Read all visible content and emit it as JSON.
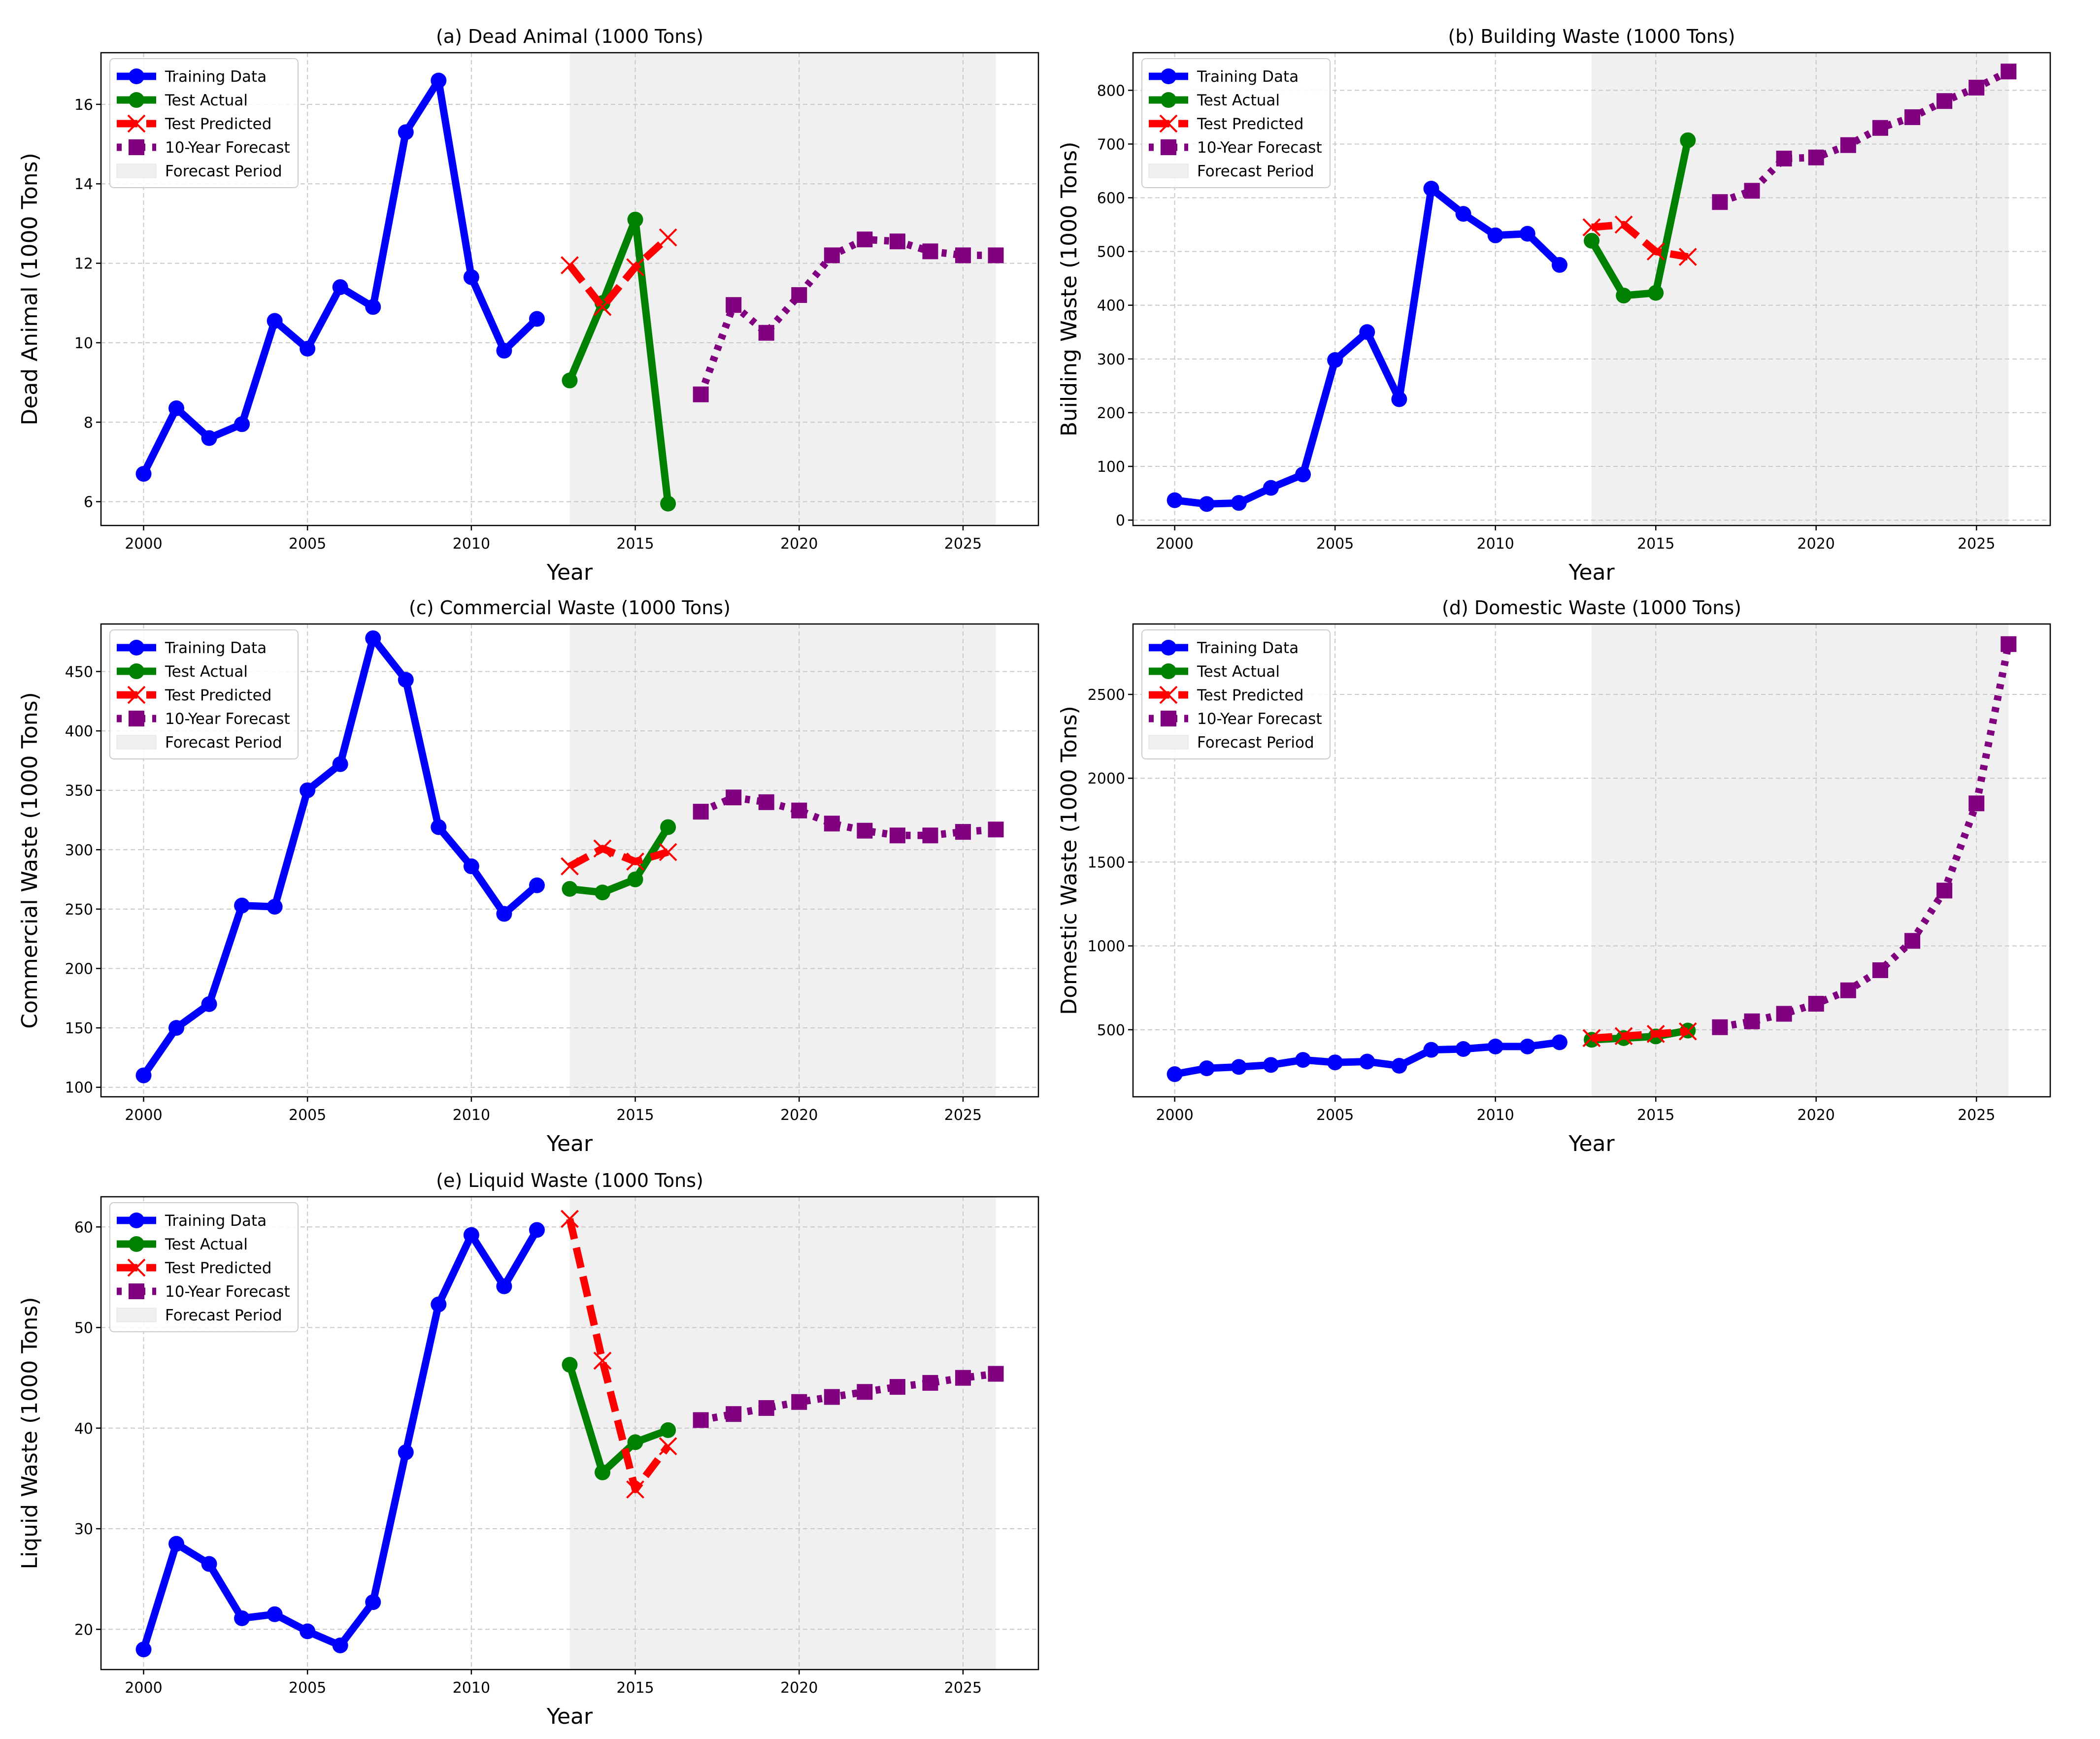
{
  "legend_labels": [
    "Training Data",
    "Test Actual",
    "Test Predicted",
    "10-Year Forecast",
    "Forecast Period"
  ],
  "colors": {
    "training": "#0000ff",
    "test_actual": "#008000",
    "test_predicted": "#ff0000",
    "forecast": "#800080",
    "forecast_period": "#f0f0f0",
    "grid": "#c8c8c8"
  },
  "chart_data": [
    {
      "id": "a",
      "type": "line",
      "title": "(a) Dead Animal (1000 Tons)",
      "xlabel": "Year",
      "ylabel": "Dead Animal (1000 Tons)",
      "xlim": [
        1998.7,
        2027.3
      ],
      "ylim": [
        5.4,
        17.3
      ],
      "xticks": [
        2000,
        2005,
        2010,
        2015,
        2020,
        2025
      ],
      "yticks": [
        6,
        8,
        10,
        12,
        14,
        16
      ],
      "legend_position": "upper-left",
      "forecast_period": [
        2013,
        2026
      ],
      "series": [
        {
          "name": "Training Data",
          "style": "training",
          "x": [
            2000,
            2001,
            2002,
            2003,
            2004,
            2005,
            2006,
            2007,
            2008,
            2009,
            2010,
            2011,
            2012
          ],
          "y": [
            6.7,
            8.35,
            7.6,
            7.95,
            10.55,
            9.85,
            11.4,
            10.9,
            15.3,
            16.6,
            11.65,
            9.8,
            10.6
          ]
        },
        {
          "name": "Test Actual",
          "style": "test_actual",
          "x": [
            2013,
            2014,
            2015,
            2016
          ],
          "y": [
            9.05,
            11.0,
            13.1,
            5.95
          ]
        },
        {
          "name": "Test Predicted",
          "style": "test_predicted",
          "x": [
            2013,
            2014,
            2015,
            2016
          ],
          "y": [
            11.95,
            10.9,
            11.9,
            12.65
          ]
        },
        {
          "name": "10-Year Forecast",
          "style": "forecast",
          "x": [
            2017,
            2018,
            2019,
            2020,
            2021,
            2022,
            2023,
            2024,
            2025,
            2026
          ],
          "y": [
            8.7,
            10.95,
            10.25,
            11.2,
            12.2,
            12.6,
            12.55,
            12.3,
            12.2,
            12.2
          ]
        }
      ]
    },
    {
      "id": "b",
      "type": "line",
      "title": "(b) Building Waste (1000 Tons)",
      "xlabel": "Year",
      "ylabel": "Building Waste (1000 Tons)",
      "xlim": [
        1998.7,
        2027.3
      ],
      "ylim": [
        -10,
        870
      ],
      "xticks": [
        2000,
        2005,
        2010,
        2015,
        2020,
        2025
      ],
      "yticks": [
        0,
        100,
        200,
        300,
        400,
        500,
        600,
        700,
        800
      ],
      "legend_position": "upper-left",
      "forecast_period": [
        2013,
        2026
      ],
      "series": [
        {
          "name": "Training Data",
          "style": "training",
          "x": [
            2000,
            2001,
            2002,
            2003,
            2004,
            2005,
            2006,
            2007,
            2008,
            2009,
            2010,
            2011,
            2012
          ],
          "y": [
            37,
            30,
            32,
            60,
            85,
            298,
            350,
            225,
            617,
            570,
            530,
            533,
            475
          ]
        },
        {
          "name": "Test Actual",
          "style": "test_actual",
          "x": [
            2013,
            2014,
            2015,
            2016
          ],
          "y": [
            520,
            418,
            423,
            707
          ]
        },
        {
          "name": "Test Predicted",
          "style": "test_predicted",
          "x": [
            2013,
            2014,
            2015,
            2016
          ],
          "y": [
            545,
            550,
            500,
            490
          ]
        },
        {
          "name": "10-Year Forecast",
          "style": "forecast",
          "x": [
            2017,
            2018,
            2019,
            2020,
            2021,
            2022,
            2023,
            2024,
            2025,
            2026
          ],
          "y": [
            592,
            613,
            673,
            675,
            698,
            730,
            750,
            780,
            805,
            835
          ]
        }
      ]
    },
    {
      "id": "c",
      "type": "line",
      "title": "(c) Commercial Waste (1000 Tons)",
      "xlabel": "Year",
      "ylabel": "Commercial Waste (1000 Tons)",
      "xlim": [
        1998.7,
        2027.3
      ],
      "ylim": [
        92,
        490
      ],
      "xticks": [
        2000,
        2005,
        2010,
        2015,
        2020,
        2025
      ],
      "yticks": [
        100,
        150,
        200,
        250,
        300,
        350,
        400,
        450
      ],
      "legend_position": "upper-left",
      "forecast_period": [
        2013,
        2026
      ],
      "series": [
        {
          "name": "Training Data",
          "style": "training",
          "x": [
            2000,
            2001,
            2002,
            2003,
            2004,
            2005,
            2006,
            2007,
            2008,
            2009,
            2010,
            2011,
            2012
          ],
          "y": [
            110,
            150,
            170,
            253,
            252,
            350,
            372,
            478,
            443,
            319,
            286,
            246,
            270
          ]
        },
        {
          "name": "Test Actual",
          "style": "test_actual",
          "x": [
            2013,
            2014,
            2015,
            2016
          ],
          "y": [
            267,
            264,
            275,
            319
          ]
        },
        {
          "name": "Test Predicted",
          "style": "test_predicted",
          "x": [
            2013,
            2014,
            2015,
            2016
          ],
          "y": [
            286,
            301,
            290,
            298
          ]
        },
        {
          "name": "10-Year Forecast",
          "style": "forecast",
          "x": [
            2017,
            2018,
            2019,
            2020,
            2021,
            2022,
            2023,
            2024,
            2025,
            2026
          ],
          "y": [
            332,
            344,
            340,
            333,
            322,
            316,
            312,
            312,
            315,
            317
          ]
        }
      ]
    },
    {
      "id": "d",
      "type": "line",
      "title": "(d) Domestic Waste (1000 Tons)",
      "xlabel": "Year",
      "ylabel": "Domestic Waste (1000 Tons)",
      "xlim": [
        1998.7,
        2027.3
      ],
      "ylim": [
        100,
        2920
      ],
      "xticks": [
        2000,
        2005,
        2010,
        2015,
        2020,
        2025
      ],
      "yticks": [
        500,
        1000,
        1500,
        2000,
        2500
      ],
      "legend_position": "upper-left",
      "forecast_period": [
        2013,
        2026
      ],
      "series": [
        {
          "name": "Training Data",
          "style": "training",
          "x": [
            2000,
            2001,
            2002,
            2003,
            2004,
            2005,
            2006,
            2007,
            2008,
            2009,
            2010,
            2011,
            2012
          ],
          "y": [
            235,
            270,
            278,
            290,
            320,
            305,
            310,
            285,
            380,
            385,
            400,
            400,
            425
          ]
        },
        {
          "name": "Test Actual",
          "style": "test_actual",
          "x": [
            2013,
            2014,
            2015,
            2016
          ],
          "y": [
            440,
            450,
            460,
            495
          ]
        },
        {
          "name": "Test Predicted",
          "style": "test_predicted",
          "x": [
            2013,
            2014,
            2015,
            2016
          ],
          "y": [
            450,
            462,
            475,
            490
          ]
        },
        {
          "name": "10-Year Forecast",
          "style": "forecast",
          "x": [
            2017,
            2018,
            2019,
            2020,
            2021,
            2022,
            2023,
            2024,
            2025,
            2026
          ],
          "y": [
            515,
            550,
            595,
            655,
            735,
            855,
            1030,
            1330,
            1850,
            2800
          ]
        }
      ]
    },
    {
      "id": "e",
      "type": "line",
      "title": "(e) Liquid Waste (1000 Tons)",
      "xlabel": "Year",
      "ylabel": "Liquid Waste (1000 Tons)",
      "xlim": [
        1998.7,
        2027.3
      ],
      "ylim": [
        16,
        63
      ],
      "xticks": [
        2000,
        2005,
        2010,
        2015,
        2020,
        2025
      ],
      "yticks": [
        20,
        30,
        40,
        50,
        60
      ],
      "legend_position": "upper-left",
      "forecast_period": [
        2013,
        2026
      ],
      "series": [
        {
          "name": "Training Data",
          "style": "training",
          "x": [
            2000,
            2001,
            2002,
            2003,
            2004,
            2005,
            2006,
            2007,
            2008,
            2009,
            2010,
            2011,
            2012
          ],
          "y": [
            18,
            28.5,
            26.5,
            21.1,
            21.5,
            19.8,
            18.4,
            22.7,
            37.6,
            52.3,
            59.2,
            54.1,
            59.7
          ]
        },
        {
          "name": "Test Actual",
          "style": "test_actual",
          "x": [
            2013,
            2014,
            2015,
            2016
          ],
          "y": [
            46.3,
            35.6,
            38.6,
            39.8
          ]
        },
        {
          "name": "Test Predicted",
          "style": "test_predicted",
          "x": [
            2013,
            2014,
            2015,
            2016
          ],
          "y": [
            60.8,
            46.7,
            33.9,
            38.2
          ]
        },
        {
          "name": "10-Year Forecast",
          "style": "forecast",
          "x": [
            2017,
            2018,
            2019,
            2020,
            2021,
            2022,
            2023,
            2024,
            2025,
            2026
          ],
          "y": [
            40.8,
            41.4,
            42.0,
            42.6,
            43.1,
            43.6,
            44.1,
            44.5,
            45.0,
            45.4
          ]
        }
      ]
    }
  ]
}
